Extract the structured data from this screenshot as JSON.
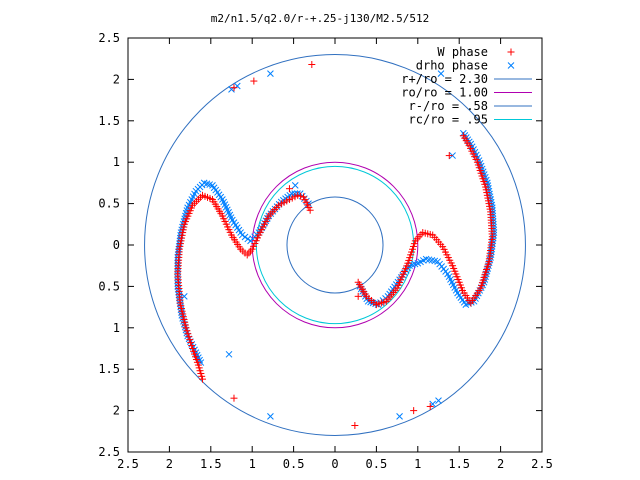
{
  "chart_data": {
    "type": "scatter",
    "title": "m2/n1.5/q2.0/r-+.25-j130/M2.5/512",
    "xlim": [
      -2.5,
      2.5
    ],
    "ylim": [
      -2.5,
      2.5
    ],
    "x_ticks": [
      -2.5,
      -2,
      -1.5,
      -1,
      -0.5,
      0,
      0.5,
      1,
      1.5,
      2,
      2.5
    ],
    "y_ticks": [
      -2.5,
      -2,
      -1.5,
      -1,
      -0.5,
      0,
      0.5,
      1,
      1.5,
      2,
      2.5
    ],
    "x_tick_labels": [
      "2.5",
      "2",
      "1.5",
      "1",
      "0.5",
      "0",
      "0.5",
      "1",
      "1.5",
      "2",
      "2.5"
    ],
    "y_tick_labels": [
      "2.5",
      "2",
      "1.5",
      "1",
      "0.5",
      "0",
      "0.5",
      "1",
      "1.5",
      "2",
      "2.5"
    ],
    "grid": false,
    "legend_position": "top-right",
    "colors": {
      "W phase": "#ff0000",
      "drho phase": "#0080ff",
      "outer_circle": "#3070c0",
      "ro_circle": "#b000b0",
      "inner_circle": "#3070c0",
      "rc_circle": "#00c8d8"
    },
    "circles": [
      {
        "name": "r+/ro = 2.30",
        "radius": 2.3,
        "color": "#3070c0"
      },
      {
        "name": "ro/ro = 1.00",
        "radius": 1.0,
        "color": "#b000b0"
      },
      {
        "name": "r-/ro = .58",
        "radius": 0.58,
        "color": "#3070c0"
      },
      {
        "name": "rc/ro = .95",
        "radius": 0.95,
        "color": "#00c8d8"
      }
    ],
    "series": [
      {
        "name": "W phase",
        "marker": "plus",
        "color": "#ff0000",
        "path": [
          [
            -0.3,
            0.42
          ],
          [
            -0.38,
            0.58
          ],
          [
            -0.45,
            0.6
          ],
          [
            -0.55,
            0.55
          ],
          [
            -0.68,
            0.48
          ],
          [
            -0.8,
            0.35
          ],
          [
            -0.92,
            0.12
          ],
          [
            -1.0,
            -0.05
          ],
          [
            -1.06,
            -0.12
          ],
          [
            -1.14,
            -0.05
          ],
          [
            -1.25,
            0.12
          ],
          [
            -1.36,
            0.35
          ],
          [
            -1.48,
            0.55
          ],
          [
            -1.6,
            0.6
          ],
          [
            -1.72,
            0.48
          ],
          [
            -1.82,
            0.25
          ],
          [
            -1.88,
            -0.05
          ],
          [
            -1.9,
            -0.35
          ],
          [
            -1.87,
            -0.7
          ],
          [
            -1.8,
            -1.0
          ],
          [
            -1.72,
            -1.25
          ],
          [
            -1.65,
            -1.45
          ],
          [
            -1.6,
            -1.62
          ]
        ],
        "path2": [
          [
            0.28,
            -0.45
          ],
          [
            0.38,
            -0.62
          ],
          [
            0.5,
            -0.72
          ],
          [
            0.62,
            -0.68
          ],
          [
            0.75,
            -0.52
          ],
          [
            0.88,
            -0.22
          ],
          [
            0.97,
            0.05
          ],
          [
            1.06,
            0.15
          ],
          [
            1.18,
            0.12
          ],
          [
            1.3,
            -0.02
          ],
          [
            1.42,
            -0.25
          ],
          [
            1.54,
            -0.55
          ],
          [
            1.64,
            -0.7
          ],
          [
            1.76,
            -0.52
          ],
          [
            1.86,
            -0.2
          ],
          [
            1.9,
            0.1
          ],
          [
            1.88,
            0.4
          ],
          [
            1.82,
            0.7
          ],
          [
            1.72,
            1.0
          ],
          [
            1.62,
            1.2
          ],
          [
            1.55,
            1.32
          ]
        ],
        "extra": [
          [
            -1.22,
            1.9
          ],
          [
            -0.98,
            1.98
          ],
          [
            -0.28,
            2.18
          ],
          [
            -0.55,
            0.68
          ],
          [
            0.28,
            -0.62
          ],
          [
            -1.22,
            -1.85
          ],
          [
            0.24,
            -2.18
          ],
          [
            0.95,
            -2.0
          ],
          [
            1.15,
            -1.95
          ],
          [
            1.38,
            1.08
          ]
        ]
      },
      {
        "name": "drho phase",
        "marker": "cross",
        "color": "#0080ff",
        "path": [
          [
            -0.32,
            0.5
          ],
          [
            -0.42,
            0.62
          ],
          [
            -0.52,
            0.62
          ],
          [
            -0.65,
            0.52
          ],
          [
            -0.8,
            0.35
          ],
          [
            -0.92,
            0.15
          ],
          [
            -1.02,
            0.05
          ],
          [
            -1.12,
            0.12
          ],
          [
            -1.24,
            0.3
          ],
          [
            -1.36,
            0.55
          ],
          [
            -1.48,
            0.72
          ],
          [
            -1.58,
            0.75
          ],
          [
            -1.68,
            0.65
          ],
          [
            -1.78,
            0.45
          ],
          [
            -1.86,
            0.15
          ],
          [
            -1.9,
            -0.15
          ],
          [
            -1.9,
            -0.5
          ],
          [
            -1.85,
            -0.85
          ],
          [
            -1.78,
            -1.1
          ],
          [
            -1.68,
            -1.3
          ],
          [
            -1.62,
            -1.42
          ]
        ],
        "path2": [
          [
            0.3,
            -0.5
          ],
          [
            0.4,
            -0.68
          ],
          [
            0.52,
            -0.72
          ],
          [
            0.64,
            -0.62
          ],
          [
            0.78,
            -0.42
          ],
          [
            0.9,
            -0.25
          ],
          [
            1.0,
            -0.22
          ],
          [
            1.1,
            -0.17
          ],
          [
            1.24,
            -0.2
          ],
          [
            1.36,
            -0.35
          ],
          [
            1.48,
            -0.58
          ],
          [
            1.58,
            -0.72
          ],
          [
            1.68,
            -0.68
          ],
          [
            1.8,
            -0.45
          ],
          [
            1.88,
            -0.15
          ],
          [
            1.92,
            0.15
          ],
          [
            1.9,
            0.45
          ],
          [
            1.84,
            0.75
          ],
          [
            1.74,
            1.02
          ],
          [
            1.64,
            1.22
          ],
          [
            1.55,
            1.35
          ]
        ],
        "extra": [
          [
            -1.25,
            1.88
          ],
          [
            -1.18,
            1.92
          ],
          [
            -0.78,
            2.07
          ],
          [
            -0.48,
            0.72
          ],
          [
            1.28,
            2.07
          ],
          [
            1.25,
            -1.88
          ],
          [
            1.18,
            -1.92
          ],
          [
            0.78,
            -2.07
          ],
          [
            -0.78,
            -2.07
          ],
          [
            -1.82,
            -0.62
          ],
          [
            -1.28,
            -1.32
          ],
          [
            1.42,
            1.08
          ]
        ]
      }
    ]
  }
}
